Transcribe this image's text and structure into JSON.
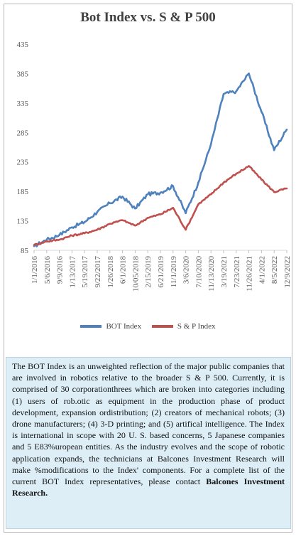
{
  "chart_data": {
    "type": "line",
    "title": "Bot Index vs. S & P 500",
    "ylim": [
      85,
      435
    ],
    "yticks": [
      85,
      135,
      185,
      235,
      285,
      335,
      385,
      435
    ],
    "xtick_labels": [
      "1/1/2016",
      "5/6/2016",
      "9/9/2016",
      "1/13/2017",
      "5/19/2017",
      "9/22/2017",
      "1/26/2018",
      "6/1/2018",
      "10/05/2018",
      "2/15/2019",
      "6/21/2019",
      "11/1/2019",
      "3/6/2020",
      "7/10/2020",
      "11/13/2020",
      "3/19/2021",
      "7/23/2021",
      "11/26/2021",
      "4/1/2022",
      "8/5/2022",
      "12/9/2022"
    ],
    "grid": false,
    "legend_position": "bottom",
    "series": [
      {
        "name": "BOT Index",
        "color": "#4f81bd",
        "x": [
          "1/1/2016",
          "5/6/2016",
          "9/9/2016",
          "1/13/2017",
          "5/19/2017",
          "9/22/2017",
          "1/26/2018",
          "6/1/2018",
          "10/05/2018",
          "2/15/2019",
          "6/21/2019",
          "11/1/2019",
          "3/6/2020",
          "7/10/2020",
          "11/13/2020",
          "3/19/2021",
          "7/23/2021",
          "11/26/2021",
          "4/1/2022",
          "8/5/2022",
          "12/9/2022"
        ],
        "values": [
          92,
          103,
          111,
          124,
          133,
          150,
          165,
          176,
          156,
          180,
          183,
          194,
          148,
          200,
          265,
          350,
          355,
          385,
          320,
          255,
          290
        ]
      },
      {
        "name": "S & P Index",
        "color": "#c0504d",
        "x": [
          "1/1/2016",
          "5/6/2016",
          "9/9/2016",
          "1/13/2017",
          "5/19/2017",
          "9/22/2017",
          "1/26/2018",
          "6/1/2018",
          "10/05/2018",
          "2/15/2019",
          "6/21/2019",
          "11/1/2019",
          "3/6/2020",
          "7/10/2020",
          "11/13/2020",
          "3/19/2021",
          "7/23/2021",
          "11/26/2021",
          "4/1/2022",
          "8/5/2022",
          "12/9/2022"
        ],
        "values": [
          94,
          100,
          103,
          110,
          114,
          120,
          130,
          136,
          127,
          140,
          146,
          157,
          120,
          163,
          180,
          200,
          215,
          228,
          205,
          184,
          190
        ]
      }
    ]
  },
  "description": {
    "paragraph": "The BOT Index is an unweighted reflection of the major public companies that are involved in robotics relative to the broader S & P 500. Currently, it is comprised of 30 corporationthrees which are broken into categories including (1) users of rob.otic as equipment in the production phase of product development, expansion ordistribution; (2) creators of mechanical robots; (3) drone manufacturers; (4) 3-D printing; and (5) artifical intelligence. The Index is international in scope with 20 U. S. based concerns, 5 Japanese companies and 5 E83%uropean entities. As the industry evolves and the scope of robotic application expands, the technicians at Balcones Investment Research will make %modifications to the Index' components. For a  complete list of the current BOT Index representatives, please contact ",
    "contact": "Balcones Investment Research."
  }
}
